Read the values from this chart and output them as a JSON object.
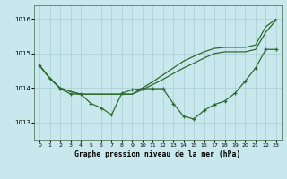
{
  "background_color": "#c8e8ee",
  "grid_color": "#a8cdd4",
  "line_color": "#2d6a2d",
  "title": "Graphe pression niveau de la mer (hPa)",
  "xlim": [
    -0.5,
    23.5
  ],
  "ylim": [
    1012.5,
    1016.4
  ],
  "yticks": [
    1013,
    1014,
    1015,
    1016
  ],
  "xticks": [
    0,
    1,
    2,
    3,
    4,
    5,
    6,
    7,
    8,
    9,
    10,
    11,
    12,
    13,
    14,
    15,
    16,
    17,
    18,
    19,
    20,
    21,
    22,
    23
  ],
  "line_wavy_y": [
    1014.65,
    1014.28,
    1013.98,
    1013.83,
    1013.82,
    1013.55,
    1013.42,
    1013.22,
    1013.85,
    1013.95,
    1013.98,
    1013.98,
    1013.98,
    1013.55,
    1013.18,
    1013.1,
    1013.35,
    1013.52,
    1013.62,
    1013.85,
    1014.2,
    1014.58,
    1015.12,
    1015.12
  ],
  "line_upper1_y": [
    1014.65,
    1014.28,
    1014.0,
    1013.9,
    1013.82,
    1013.82,
    1013.82,
    1013.82,
    1013.82,
    1013.82,
    1013.95,
    1014.1,
    1014.25,
    1014.42,
    1014.58,
    1014.72,
    1014.87,
    1015.0,
    1015.05,
    1015.05,
    1015.05,
    1015.12,
    1015.62,
    1015.97
  ],
  "line_upper2_y": [
    1014.65,
    1014.28,
    1014.0,
    1013.9,
    1013.82,
    1013.82,
    1013.82,
    1013.82,
    1013.82,
    1013.82,
    1014.0,
    1014.18,
    1014.38,
    1014.58,
    1014.78,
    1014.92,
    1015.05,
    1015.15,
    1015.18,
    1015.18,
    1015.18,
    1015.25,
    1015.78,
    1016.0
  ]
}
